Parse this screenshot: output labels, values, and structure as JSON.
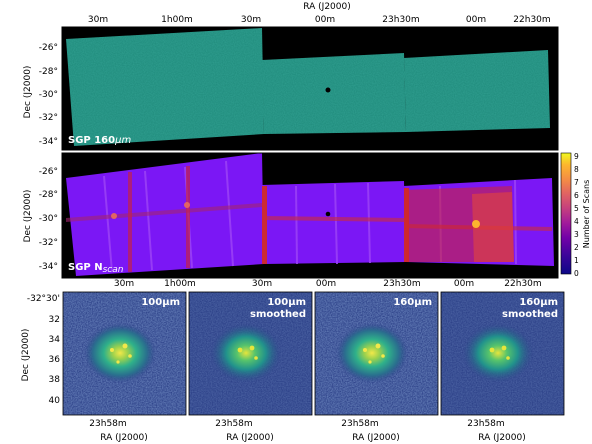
{
  "top_panel": {
    "ra_axis_label": "RA (J2000)",
    "ra_ticks": [
      "30m",
      "1h00m",
      "30m",
      "00m",
      "23h30m",
      "00m",
      "22h30m"
    ],
    "dec_axis_label": "Dec (J2000)",
    "dec_ticks": [
      "-26°",
      "-28°",
      "-30°",
      "-32°",
      "-34°"
    ],
    "label_main": "SGP 160",
    "label_unit": "μm"
  },
  "middle_panel": {
    "dec_axis_label": "Dec (J2000)",
    "dec_ticks": [
      "-26°",
      "-28°",
      "-30°",
      "-32°",
      "-34°"
    ],
    "label_main": "SGP N",
    "label_sub": "scan",
    "colorbar_label": "Number of Scans",
    "colorbar_ticks": [
      "9",
      "8",
      "7",
      "6",
      "5",
      "4",
      "3",
      "2",
      "1",
      "0"
    ],
    "ra_ticks_bottom": [
      "30m",
      "1h00m",
      "30m",
      "00m",
      "23h30m",
      "00m",
      "22h30m"
    ]
  },
  "bottom_panels": {
    "dec_axis_label": "Dec (J2000)",
    "dec_ticks": [
      "-32°30'",
      "32",
      "34",
      "36",
      "38",
      "40"
    ],
    "ra_tick": "23h58m",
    "ra_axis_label": "RA (J2000)",
    "panels": [
      {
        "label_line1": "100μm",
        "label_line2": ""
      },
      {
        "label_line1": "100μm",
        "label_line2": "smoothed"
      },
      {
        "label_line1": "160μm",
        "label_line2": ""
      },
      {
        "label_line1": "160μm",
        "label_line2": "smoothed"
      }
    ]
  },
  "colors": {
    "map_bg": "#000000",
    "noise_teal": "#2f9e8f",
    "coverage_purple": "#7b17f5",
    "coverage_red": "#d2252a",
    "galaxy_bg": "#2b3f87"
  }
}
